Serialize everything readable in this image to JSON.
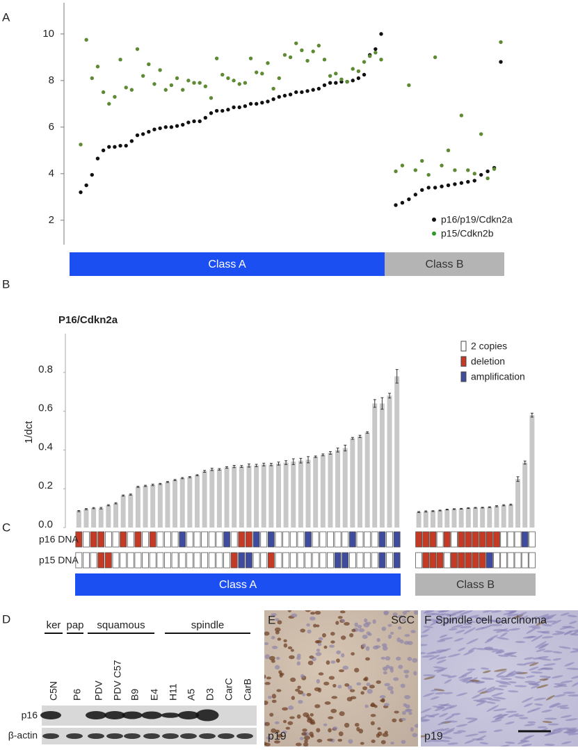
{
  "panel_labels": [
    "A",
    "B",
    "C",
    "D",
    "E",
    "F"
  ],
  "chart_data": [
    {
      "type": "scatter",
      "ylim": [
        0.95,
        11.25
      ],
      "yticks": [
        2,
        4,
        6,
        8,
        10
      ],
      "series": [
        {
          "name": "p16/p19/Cdkn2a",
          "color": "#111111"
        },
        {
          "name": "p15/Cdkn2b",
          "color": "#2e9a2e"
        }
      ],
      "groups": [
        {
          "label": "Class A",
          "color": "#1c4ff2",
          "series": [
            {
              "values": [
                3.2,
                3.5,
                3.95,
                4.65,
                5.0,
                5.15,
                5.15,
                5.2,
                5.2,
                5.4,
                5.65,
                5.7,
                5.8,
                5.9,
                5.95,
                6.0,
                6.0,
                6.05,
                6.1,
                6.2,
                6.25,
                6.25,
                6.4,
                6.6,
                6.7,
                6.7,
                6.75,
                6.85,
                6.85,
                6.9,
                7.0,
                7.0,
                7.05,
                7.1,
                7.2,
                7.3,
                7.35,
                7.4,
                7.5,
                7.5,
                7.55,
                7.6,
                7.65,
                7.8,
                7.9,
                7.9,
                7.95,
                7.95,
                8.0,
                8.1,
                8.25,
                9.1,
                9.35,
                10.0
              ]
            },
            {
              "values": [
                5.25,
                9.75,
                8.1,
                8.6,
                7.5,
                7.0,
                7.3,
                8.9,
                7.7,
                7.6,
                9.35,
                8.2,
                8.7,
                7.85,
                8.45,
                7.6,
                7.8,
                8.1,
                7.6,
                8.0,
                7.9,
                7.9,
                7.75,
                7.25,
                8.95,
                8.25,
                8.1,
                8.0,
                7.85,
                7.9,
                8.95,
                8.35,
                8.3,
                8.75,
                7.65,
                8.1,
                9.1,
                9.0,
                9.6,
                9.3,
                8.85,
                9.25,
                9.5,
                8.9,
                8.2,
                8.3,
                8.05,
                7.95,
                8.5,
                8.4,
                8.8,
                9.05,
                9.2,
                8.9
              ]
            }
          ]
        },
        {
          "label": "Class B",
          "color": "#b4b4b4",
          "series": [
            {
              "values": [
                2.65,
                2.75,
                2.9,
                3.1,
                3.3,
                3.4,
                3.4,
                3.45,
                3.5,
                3.55,
                3.6,
                3.65,
                3.7,
                3.95,
                4.1,
                4.25,
                8.8
              ]
            },
            {
              "values": [
                4.1,
                4.35,
                7.8,
                4.15,
                4.55,
                3.95,
                9.0,
                4.35,
                5.0,
                4.15,
                6.5,
                4.15,
                4.0,
                5.7,
                3.8,
                4.2,
                9.65
              ]
            }
          ]
        }
      ]
    },
    {
      "type": "bar",
      "title": "P16/Cdkn2a",
      "y_label": "1/dct",
      "ylim": [
        0,
        1.0
      ],
      "yticks": [
        {
          "value": 0,
          "label": "0.0"
        },
        0.2,
        0.4,
        0.6,
        0.8
      ],
      "legend": [
        {
          "name": "2 copies",
          "color": "#ffffff"
        },
        {
          "name": "deletion",
          "color": "#c53a24"
        },
        {
          "name": "amplification",
          "color": "#3f4b9c"
        }
      ],
      "tracks": [
        "p16 DNA",
        "p15 DNA"
      ],
      "bar_color": "#c8c8c8",
      "groups": [
        {
          "label": "Class A",
          "color": "#1c4ff2",
          "values": [
            0.085,
            0.095,
            0.1,
            0.1,
            0.115,
            0.125,
            0.165,
            0.17,
            0.21,
            0.215,
            0.22,
            0.225,
            0.235,
            0.245,
            0.255,
            0.26,
            0.27,
            0.29,
            0.3,
            0.3,
            0.31,
            0.315,
            0.315,
            0.32,
            0.32,
            0.325,
            0.325,
            0.33,
            0.335,
            0.34,
            0.345,
            0.35,
            0.365,
            0.375,
            0.385,
            0.4,
            0.41,
            0.46,
            0.47,
            0.49,
            0.64,
            0.64,
            0.68,
            0.78
          ],
          "errors": [
            0.003,
            0.003,
            0.003,
            0.004,
            0.003,
            0.003,
            0.003,
            0.003,
            0.003,
            0.003,
            0.004,
            0.003,
            0.003,
            0.003,
            0.003,
            0.003,
            0.003,
            0.005,
            0.006,
            0.004,
            0.004,
            0.006,
            0.005,
            0.008,
            0.006,
            0.007,
            0.006,
            0.008,
            0.01,
            0.015,
            0.012,
            0.016,
            0.004,
            0.005,
            0.007,
            0.01,
            0.015,
            0.005,
            0.006,
            0.004,
            0.02,
            0.03,
            0.012,
            0.035
          ],
          "tracks": [
            [
              1,
              0,
              1,
              1,
              0,
              0,
              1,
              0,
              1,
              0,
              1,
              0,
              0,
              0,
              2,
              0,
              0,
              0,
              0,
              0,
              2,
              0,
              1,
              1,
              2,
              0,
              2,
              0,
              0,
              0,
              0,
              2,
              0,
              0,
              0,
              0,
              0,
              2,
              0,
              0,
              0,
              2,
              0,
              2
            ],
            [
              0,
              0,
              0,
              1,
              1,
              0,
              0,
              0,
              0,
              0,
              0,
              0,
              0,
              0,
              0,
              0,
              0,
              0,
              0,
              0,
              0,
              1,
              2,
              2,
              0,
              0,
              1,
              0,
              0,
              0,
              0,
              0,
              0,
              0,
              0,
              2,
              2,
              0,
              0,
              0,
              0,
              2,
              0,
              2
            ]
          ]
        },
        {
          "label": "Class B",
          "color": "#b4b4b4",
          "values": [
            0.08,
            0.083,
            0.085,
            0.088,
            0.093,
            0.095,
            0.097,
            0.1,
            0.102,
            0.103,
            0.105,
            0.11,
            0.115,
            0.118,
            0.25,
            0.335,
            0.58
          ],
          "errors": [
            0.003,
            0.003,
            0.002,
            0.002,
            0.002,
            0.002,
            0.002,
            0.002,
            0.002,
            0.002,
            0.002,
            0.003,
            0.003,
            0.003,
            0.012,
            0.008,
            0.01
          ],
          "tracks": [
            [
              1,
              1,
              1,
              0,
              1,
              0,
              1,
              1,
              1,
              1,
              1,
              1,
              0,
              0,
              0,
              2,
              0
            ],
            [
              0,
              1,
              1,
              1,
              0,
              1,
              1,
              1,
              1,
              1,
              2,
              0,
              0,
              0,
              0,
              0,
              0
            ]
          ]
        }
      ]
    }
  ],
  "blot": {
    "groups": [
      "ker",
      "pap",
      "squamous",
      "spindle"
    ],
    "lanes": [
      "C5N",
      "P6",
      "PDV",
      "PDV C57",
      "B9",
      "E4",
      "H11",
      "A5",
      "D3",
      "CarC",
      "CarB"
    ],
    "rows": [
      "p16",
      "β-actin"
    ]
  },
  "images": [
    {
      "label": "SCC",
      "stain": "p19"
    },
    {
      "label": "Spindle cell carcinoma",
      "stain": "p19"
    }
  ]
}
